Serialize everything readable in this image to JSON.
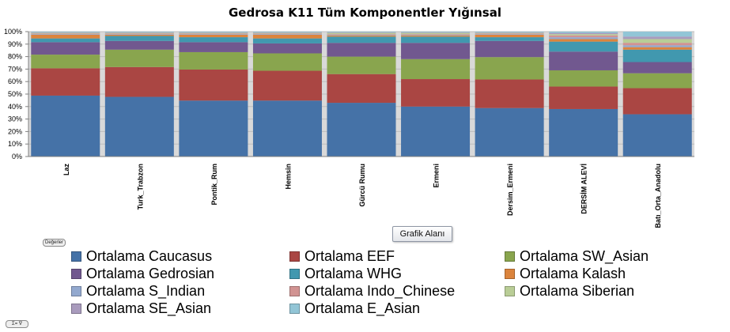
{
  "chart_data": {
    "type": "bar",
    "stacked": true,
    "title": "Gedrosa K11  Tüm Komponentler Yığınsal",
    "categories": [
      "Laz",
      "Turk_Trabzon",
      "Pontik_Rum",
      "Hemsin",
      "Gürcü Rumu",
      "Ermeni",
      "Dersim_Ermeni",
      "DERSİM ALEVİ",
      "Batı_Orta_Anadolu"
    ],
    "y_ticks": [
      "0%",
      "10%",
      "20%",
      "30%",
      "40%",
      "50%",
      "60%",
      "70%",
      "80%",
      "90%",
      "100%"
    ],
    "ylim": [
      0,
      100
    ],
    "series": [
      {
        "name": "Ortalama Caucasus",
        "color": "#4572A7",
        "values": [
          49,
          48,
          45,
          45,
          43,
          40,
          39,
          38,
          34
        ]
      },
      {
        "name": "Ortalama EEF",
        "color": "#AA4643",
        "values": [
          22,
          24,
          25,
          24,
          23,
          22,
          23,
          18,
          21
        ]
      },
      {
        "name": "Ortalama SW_Asian",
        "color": "#89A54E",
        "values": [
          11,
          14,
          14,
          14,
          14,
          16,
          18,
          13,
          12
        ]
      },
      {
        "name": "Ortalama Gedrosian",
        "color": "#71588F",
        "values": [
          10,
          7,
          8,
          8,
          11,
          13,
          13,
          15,
          9
        ]
      },
      {
        "name": "Ortalama WHG",
        "color": "#4198AF",
        "values": [
          3,
          4,
          4,
          4,
          5,
          5,
          3,
          8,
          10
        ]
      },
      {
        "name": "Ortalama Kalash",
        "color": "#DB843D",
        "values": [
          3,
          1,
          2,
          3,
          1,
          1,
          2,
          2,
          2
        ]
      },
      {
        "name": "Ortalama S_Indian",
        "color": "#93A9CF",
        "values": [
          0.5,
          0.5,
          0.5,
          0.5,
          0.5,
          0.5,
          0.5,
          1.5,
          1.5
        ]
      },
      {
        "name": "Ortalama Indo_Chinese",
        "color": "#D19392",
        "values": [
          0.5,
          0.5,
          0.5,
          0.5,
          0.5,
          0.5,
          0.5,
          1.5,
          2
        ]
      },
      {
        "name": "Ortalama Siberian",
        "color": "#B9CD96",
        "values": [
          0.5,
          0.5,
          0.5,
          0.5,
          1,
          1,
          0.5,
          1,
          3
        ]
      },
      {
        "name": "Ortalama SE_Asian",
        "color": "#A99BBD",
        "values": [
          0.5,
          0.5,
          0.5,
          0.5,
          0.5,
          0.5,
          0.5,
          1,
          2
        ]
      },
      {
        "name": "Ortalama E_Asian",
        "color": "#92C5D6",
        "values": [
          0.5,
          0.5,
          0.5,
          0.5,
          0.5,
          0.5,
          0.5,
          1,
          4
        ]
      }
    ],
    "legend_position": "bottom"
  },
  "ui": {
    "tooltip": "Grafik Alanı",
    "values_button": "Değerler",
    "sigma_button": "Σ= ∇"
  }
}
